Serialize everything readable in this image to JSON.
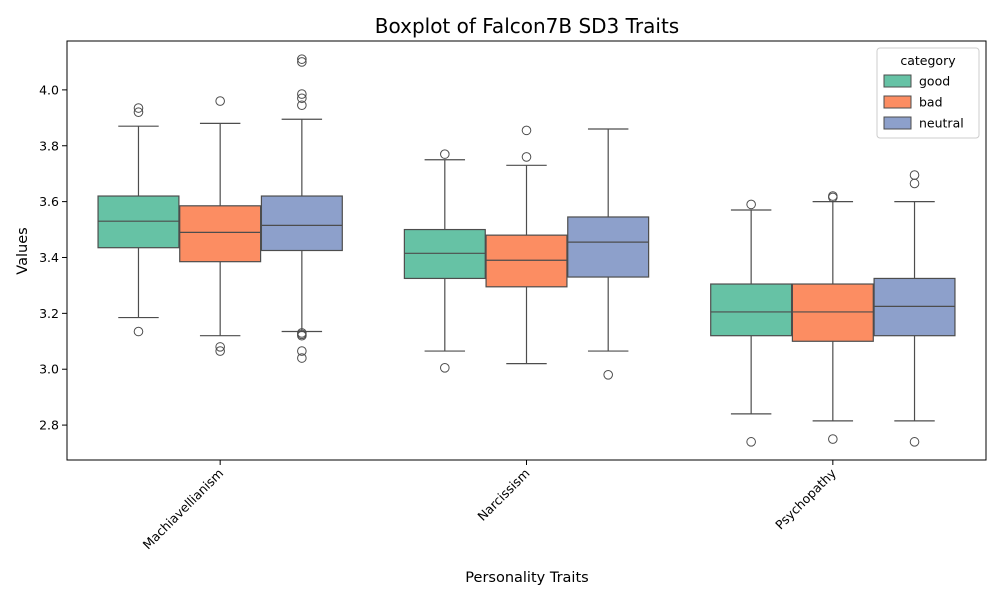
{
  "chart_data": {
    "type": "boxplot",
    "title": "Boxplot of Falcon7B SD3 Traits",
    "xlabel": "Personality Traits",
    "ylabel": "Values",
    "ylim": [
      2.675,
      4.175
    ],
    "yticks": [
      2.8,
      3.0,
      3.2,
      3.4,
      3.6,
      3.8,
      4.0
    ],
    "categories": [
      "Machiavellianism",
      "Narcissism",
      "Psychopathy"
    ],
    "legend": {
      "title": "category",
      "placement": "top-right"
    },
    "series": [
      {
        "name": "good",
        "color": "#66c2a5",
        "boxes": [
          {
            "whisker_low": 3.185,
            "q1": 3.435,
            "median": 3.53,
            "q3": 3.62,
            "whisker_high": 3.87,
            "outliers": [
              3.935,
              3.92,
              3.135
            ]
          },
          {
            "whisker_low": 3.065,
            "q1": 3.325,
            "median": 3.415,
            "q3": 3.5,
            "whisker_high": 3.75,
            "outliers": [
              3.77,
              3.005
            ]
          },
          {
            "whisker_low": 2.84,
            "q1": 3.12,
            "median": 3.205,
            "q3": 3.305,
            "whisker_high": 3.57,
            "outliers": [
              3.59,
              2.74
            ]
          }
        ]
      },
      {
        "name": "bad",
        "color": "#fc8d62",
        "boxes": [
          {
            "whisker_low": 3.12,
            "q1": 3.385,
            "median": 3.49,
            "q3": 3.585,
            "whisker_high": 3.88,
            "outliers": [
              3.96,
              3.08,
              3.065
            ]
          },
          {
            "whisker_low": 3.02,
            "q1": 3.295,
            "median": 3.39,
            "q3": 3.48,
            "whisker_high": 3.73,
            "outliers": [
              3.855,
              3.76
            ]
          },
          {
            "whisker_low": 2.815,
            "q1": 3.1,
            "median": 3.205,
            "q3": 3.305,
            "whisker_high": 3.6,
            "outliers": [
              3.62,
              3.615,
              2.75
            ]
          }
        ]
      },
      {
        "name": "neutral",
        "color": "#8da0cb",
        "boxes": [
          {
            "whisker_low": 3.135,
            "q1": 3.425,
            "median": 3.515,
            "q3": 3.62,
            "whisker_high": 3.895,
            "outliers": [
              4.11,
              4.1,
              3.985,
              3.97,
              3.945,
              3.13,
              3.125,
              3.12,
              3.065,
              3.04
            ]
          },
          {
            "whisker_low": 3.065,
            "q1": 3.33,
            "median": 3.455,
            "q3": 3.545,
            "whisker_high": 3.86,
            "outliers": [
              2.98
            ]
          },
          {
            "whisker_low": 2.815,
            "q1": 3.12,
            "median": 3.225,
            "q3": 3.325,
            "whisker_high": 3.6,
            "outliers": [
              3.695,
              3.665,
              2.74
            ]
          }
        ]
      }
    ]
  }
}
